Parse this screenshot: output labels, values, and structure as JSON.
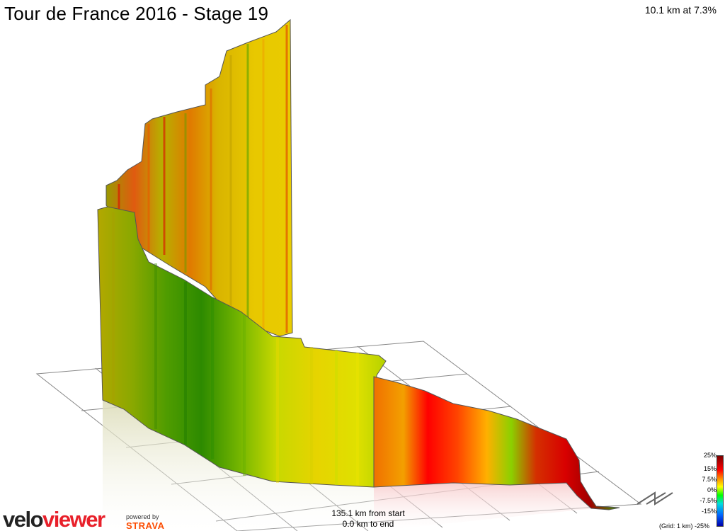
{
  "header": {
    "title": "Tour de France 2016 - Stage 19",
    "climb_summary": "10.1 km at 7.3%"
  },
  "footer": {
    "from_start": "135.1 km from start",
    "to_end": "0.0 km to end",
    "grid_note": "(Grid: 1 km)",
    "powered_by": "powered by",
    "strava": "STRAVA",
    "logo_velo": "velo",
    "logo_viewer": "viewer"
  },
  "legend": {
    "labels": [
      "25%",
      "15%",
      "7.5%",
      "0%",
      "-7.5%",
      "-15%",
      "-25%"
    ]
  },
  "icons": {
    "compass": "north-arrow-icon"
  },
  "colors": {
    "grade_red": "#e20000",
    "grade_orange": "#f07a10",
    "grade_yellow": "#e8d000",
    "grade_green": "#5fa000",
    "brand_red": "#e8202a",
    "strava_orange": "#fc4c02"
  }
}
